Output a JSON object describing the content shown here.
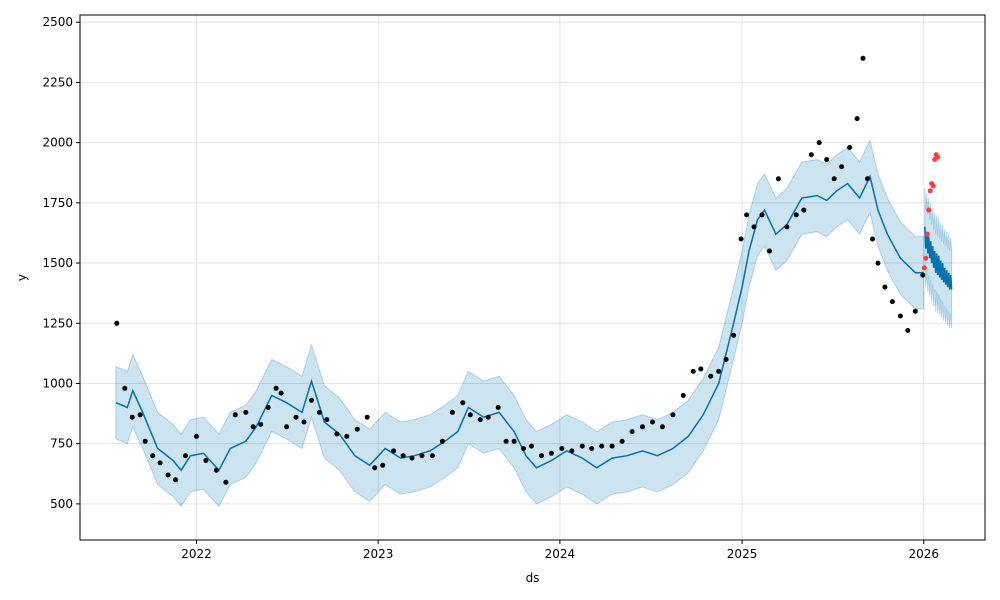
{
  "chart_data": {
    "type": "line",
    "title": "",
    "xlabel": "ds",
    "ylabel": "y",
    "x_ticks": [
      "2022",
      "2023",
      "2024",
      "2025",
      "2026"
    ],
    "y_ticks": [
      "500",
      "750",
      "1000",
      "1250",
      "1500",
      "1750",
      "2000",
      "2250",
      "2500"
    ],
    "xlim": [
      "2021-05-12",
      "2026-05-04"
    ],
    "ylim": [
      350,
      2530
    ],
    "grid": true,
    "legend": "none",
    "colors": {
      "forecast_line": "#0072B2",
      "uncertainty_band": "#0072B2",
      "observed_points": "#000000",
      "future_points": "#ff3b3b"
    },
    "series": [
      {
        "kind": "forecast",
        "x": [
          "2021-07-23",
          "2021-08-15",
          "2021-08-26",
          "2021-09-15",
          "2021-10-15",
          "2021-11-15",
          "2021-12-01",
          "2021-12-20",
          "2022-01-15",
          "2022-02-15",
          "2022-03-10",
          "2022-04-10",
          "2022-05-01",
          "2022-06-01",
          "2022-07-01",
          "2022-08-01",
          "2022-08-20",
          "2022-09-15",
          "2022-10-15",
          "2022-11-15",
          "2022-12-15",
          "2023-01-15",
          "2023-02-15",
          "2023-03-15",
          "2023-04-15",
          "2023-05-15",
          "2023-06-10",
          "2023-07-01",
          "2023-08-01",
          "2023-09-01",
          "2023-10-01",
          "2023-10-25",
          "2023-11-15",
          "2023-12-15",
          "2024-01-15",
          "2024-02-15",
          "2024-03-15",
          "2024-04-15",
          "2024-05-15",
          "2024-06-15",
          "2024-07-15",
          "2024-08-15",
          "2024-09-15",
          "2024-10-15",
          "2024-11-15",
          "2024-12-15",
          "2025-01-01",
          "2025-01-15",
          "2025-02-01",
          "2025-02-15",
          "2025-03-10",
          "2025-04-01",
          "2025-05-01",
          "2025-06-01",
          "2025-06-20",
          "2025-07-10",
          "2025-08-01",
          "2025-08-25",
          "2025-09-15",
          "2025-10-01",
          "2025-10-20",
          "2025-11-15",
          "2025-12-15",
          "2026-01-01"
        ],
        "y": [
          920,
          900,
          970,
          880,
          730,
          680,
          640,
          700,
          710,
          640,
          730,
          760,
          820,
          950,
          920,
          880,
          1010,
          840,
          790,
          700,
          660,
          730,
          690,
          700,
          720,
          760,
          800,
          900,
          860,
          880,
          800,
          700,
          650,
          680,
          720,
          690,
          650,
          690,
          700,
          720,
          700,
          730,
          780,
          870,
          1000,
          1250,
          1400,
          1550,
          1680,
          1720,
          1620,
          1660,
          1770,
          1780,
          1760,
          1800,
          1830,
          1770,
          1860,
          1720,
          1620,
          1520,
          1460,
          1460
        ],
        "band_half_width": 150
      },
      {
        "kind": "forecast-future",
        "x": [
          "2026-01-03",
          "2026-01-05",
          "2026-01-07",
          "2026-01-09",
          "2026-01-11",
          "2026-01-13",
          "2026-01-15",
          "2026-01-17",
          "2026-01-19",
          "2026-01-21",
          "2026-01-23",
          "2026-01-25",
          "2026-01-27",
          "2026-01-29",
          "2026-01-31",
          "2026-02-02",
          "2026-02-04",
          "2026-02-06",
          "2026-02-08",
          "2026-02-10",
          "2026-02-12",
          "2026-02-14",
          "2026-02-16",
          "2026-02-18",
          "2026-02-20",
          "2026-02-22",
          "2026-02-24",
          "2026-02-26"
        ],
        "y": [
          1650,
          1560,
          1630,
          1540,
          1610,
          1520,
          1590,
          1500,
          1570,
          1480,
          1550,
          1460,
          1540,
          1450,
          1530,
          1440,
          1510,
          1430,
          1500,
          1420,
          1480,
          1410,
          1470,
          1400,
          1460,
          1390,
          1450,
          1390
        ],
        "band_half_width": 160
      },
      {
        "kind": "observed",
        "x": [
          "2021-07-25",
          "2021-08-10",
          "2021-08-25",
          "2021-09-10",
          "2021-09-20",
          "2021-10-05",
          "2021-10-20",
          "2021-11-05",
          "2021-11-20",
          "2021-12-10",
          "2022-01-01",
          "2022-01-20",
          "2022-02-10",
          "2022-03-01",
          "2022-03-20",
          "2022-04-10",
          "2022-04-25",
          "2022-05-10",
          "2022-05-25",
          "2022-06-10",
          "2022-06-20",
          "2022-07-01",
          "2022-07-20",
          "2022-08-05",
          "2022-08-20",
          "2022-09-05",
          "2022-09-20",
          "2022-10-10",
          "2022-10-30",
          "2022-11-20",
          "2022-12-10",
          "2022-12-25",
          "2023-01-10",
          "2023-02-01",
          "2023-02-20",
          "2023-03-10",
          "2023-03-30",
          "2023-04-20",
          "2023-05-10",
          "2023-05-30",
          "2023-06-20",
          "2023-07-05",
          "2023-07-25",
          "2023-08-10",
          "2023-08-30",
          "2023-09-15",
          "2023-10-01",
          "2023-10-20",
          "2023-11-05",
          "2023-11-25",
          "2023-12-15",
          "2024-01-05",
          "2024-01-25",
          "2024-02-15",
          "2024-03-05",
          "2024-03-25",
          "2024-04-15",
          "2024-05-05",
          "2024-05-25",
          "2024-06-15",
          "2024-07-05",
          "2024-07-25",
          "2024-08-15",
          "2024-09-05",
          "2024-09-25",
          "2024-10-10",
          "2024-10-30",
          "2024-11-15",
          "2024-11-30",
          "2024-12-15",
          "2024-12-30",
          "2025-01-10",
          "2025-01-25",
          "2025-02-10",
          "2025-02-25",
          "2025-03-15",
          "2025-04-01",
          "2025-04-20",
          "2025-05-05",
          "2025-05-20",
          "2025-06-05",
          "2025-06-20",
          "2025-07-05",
          "2025-07-20",
          "2025-08-05",
          "2025-08-20",
          "2025-09-01",
          "2025-09-10",
          "2025-09-20",
          "2025-10-01",
          "2025-10-15",
          "2025-10-30",
          "2025-11-15",
          "2025-11-30",
          "2025-12-15",
          "2025-12-30"
        ],
        "y": [
          1250,
          980,
          860,
          870,
          760,
          700,
          670,
          620,
          600,
          700,
          780,
          680,
          640,
          590,
          870,
          880,
          820,
          830,
          900,
          980,
          960,
          820,
          860,
          840,
          930,
          880,
          850,
          790,
          780,
          810,
          860,
          650,
          660,
          720,
          700,
          690,
          700,
          700,
          760,
          880,
          920,
          870,
          850,
          860,
          900,
          760,
          760,
          730,
          740,
          700,
          710,
          730,
          720,
          740,
          730,
          740,
          740,
          760,
          800,
          820,
          840,
          820,
          870,
          950,
          1050,
          1060,
          1030,
          1050,
          1100,
          1200,
          1600,
          1700,
          1650,
          1700,
          1550,
          1850,
          1650,
          1700,
          1720,
          1950,
          2000,
          1930,
          1850,
          1900,
          1980,
          2100,
          2350,
          1850,
          1600,
          1500,
          1400,
          1340,
          1280,
          1220,
          1300,
          1450
        ],
        "label": ""
      },
      {
        "kind": "future-actuals",
        "x": [
          "2026-01-02",
          "2026-01-05",
          "2026-01-08",
          "2026-01-11",
          "2026-01-14",
          "2026-01-17",
          "2026-01-20",
          "2026-01-23",
          "2026-01-26",
          "2026-01-29"
        ],
        "y": [
          1480,
          1520,
          1620,
          1720,
          1800,
          1830,
          1820,
          1930,
          1950,
          1940
        ],
        "label": ""
      }
    ]
  }
}
